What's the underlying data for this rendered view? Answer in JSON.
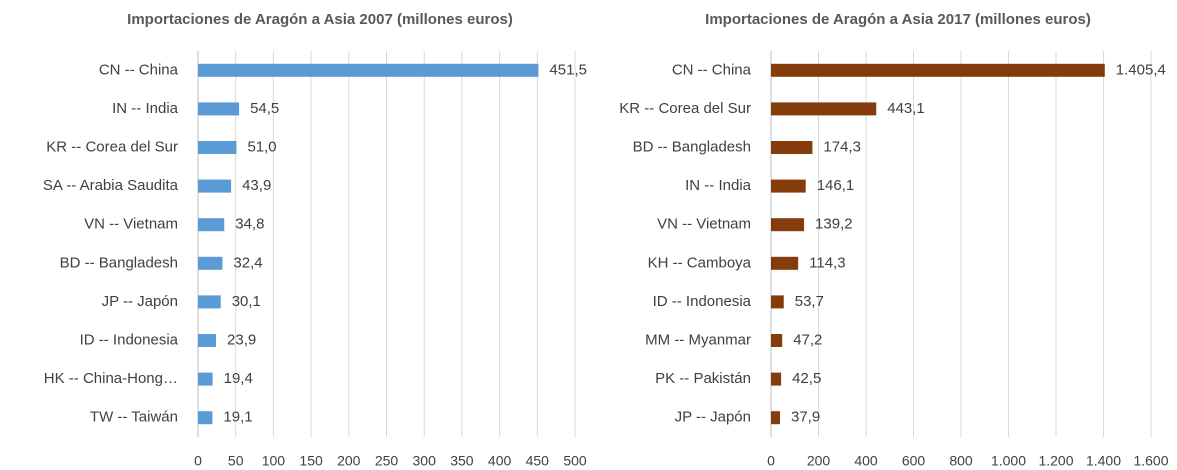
{
  "chart_data": [
    {
      "type": "bar",
      "orientation": "horizontal",
      "title": "Importaciones de Aragón a Asia 2007 (millones euros)",
      "categories": [
        "CN -- China",
        "IN -- India",
        "KR -- Corea del Sur",
        "SA -- Arabia Saudita",
        "VN -- Vietnam",
        "BD -- Bangladesh",
        "JP -- Japón",
        "ID -- Indonesia",
        "HK -- China-Hong…",
        "TW -- Taiwán"
      ],
      "values": [
        451.5,
        54.5,
        51.0,
        43.9,
        34.8,
        32.4,
        30.1,
        23.9,
        19.4,
        19.1
      ],
      "value_labels": [
        "451,5",
        "54,5",
        "51,0",
        "43,9",
        "34,8",
        "32,4",
        "30,1",
        "23,9",
        "19,4",
        "19,1"
      ],
      "color": "#5b9bd5",
      "xlim": [
        0,
        500
      ],
      "xticks": [
        0,
        50,
        100,
        150,
        200,
        250,
        300,
        350,
        400,
        450,
        500
      ],
      "grid": true
    },
    {
      "type": "bar",
      "orientation": "horizontal",
      "title": "Importaciones de Aragón a Asia 2017 (millones euros)",
      "categories": [
        "CN -- China",
        "KR -- Corea del Sur",
        "BD -- Bangladesh",
        "IN -- India",
        "VN -- Vietnam",
        "KH -- Camboya",
        "ID -- Indonesia",
        "MM -- Myanmar",
        "PK -- Pakistán",
        "JP -- Japón"
      ],
      "values": [
        1405.4,
        443.1,
        174.3,
        146.1,
        139.2,
        114.3,
        53.7,
        47.2,
        42.5,
        37.9
      ],
      "value_labels": [
        "1.405,4",
        "443,1",
        "174,3",
        "146,1",
        "139,2",
        "114,3",
        "53,7",
        "47,2",
        "42,5",
        "37,9"
      ],
      "color": "#843c0c",
      "xlim": [
        0,
        1600
      ],
      "xticks": [
        0,
        200,
        400,
        600,
        800,
        {
          "value": 1000,
          "label": "1.000"
        },
        {
          "value": 1200,
          "label": "1.200"
        },
        {
          "value": 1400,
          "label": "1.400"
        },
        {
          "value": 1600,
          "label": "1.600"
        }
      ],
      "grid": true
    }
  ]
}
